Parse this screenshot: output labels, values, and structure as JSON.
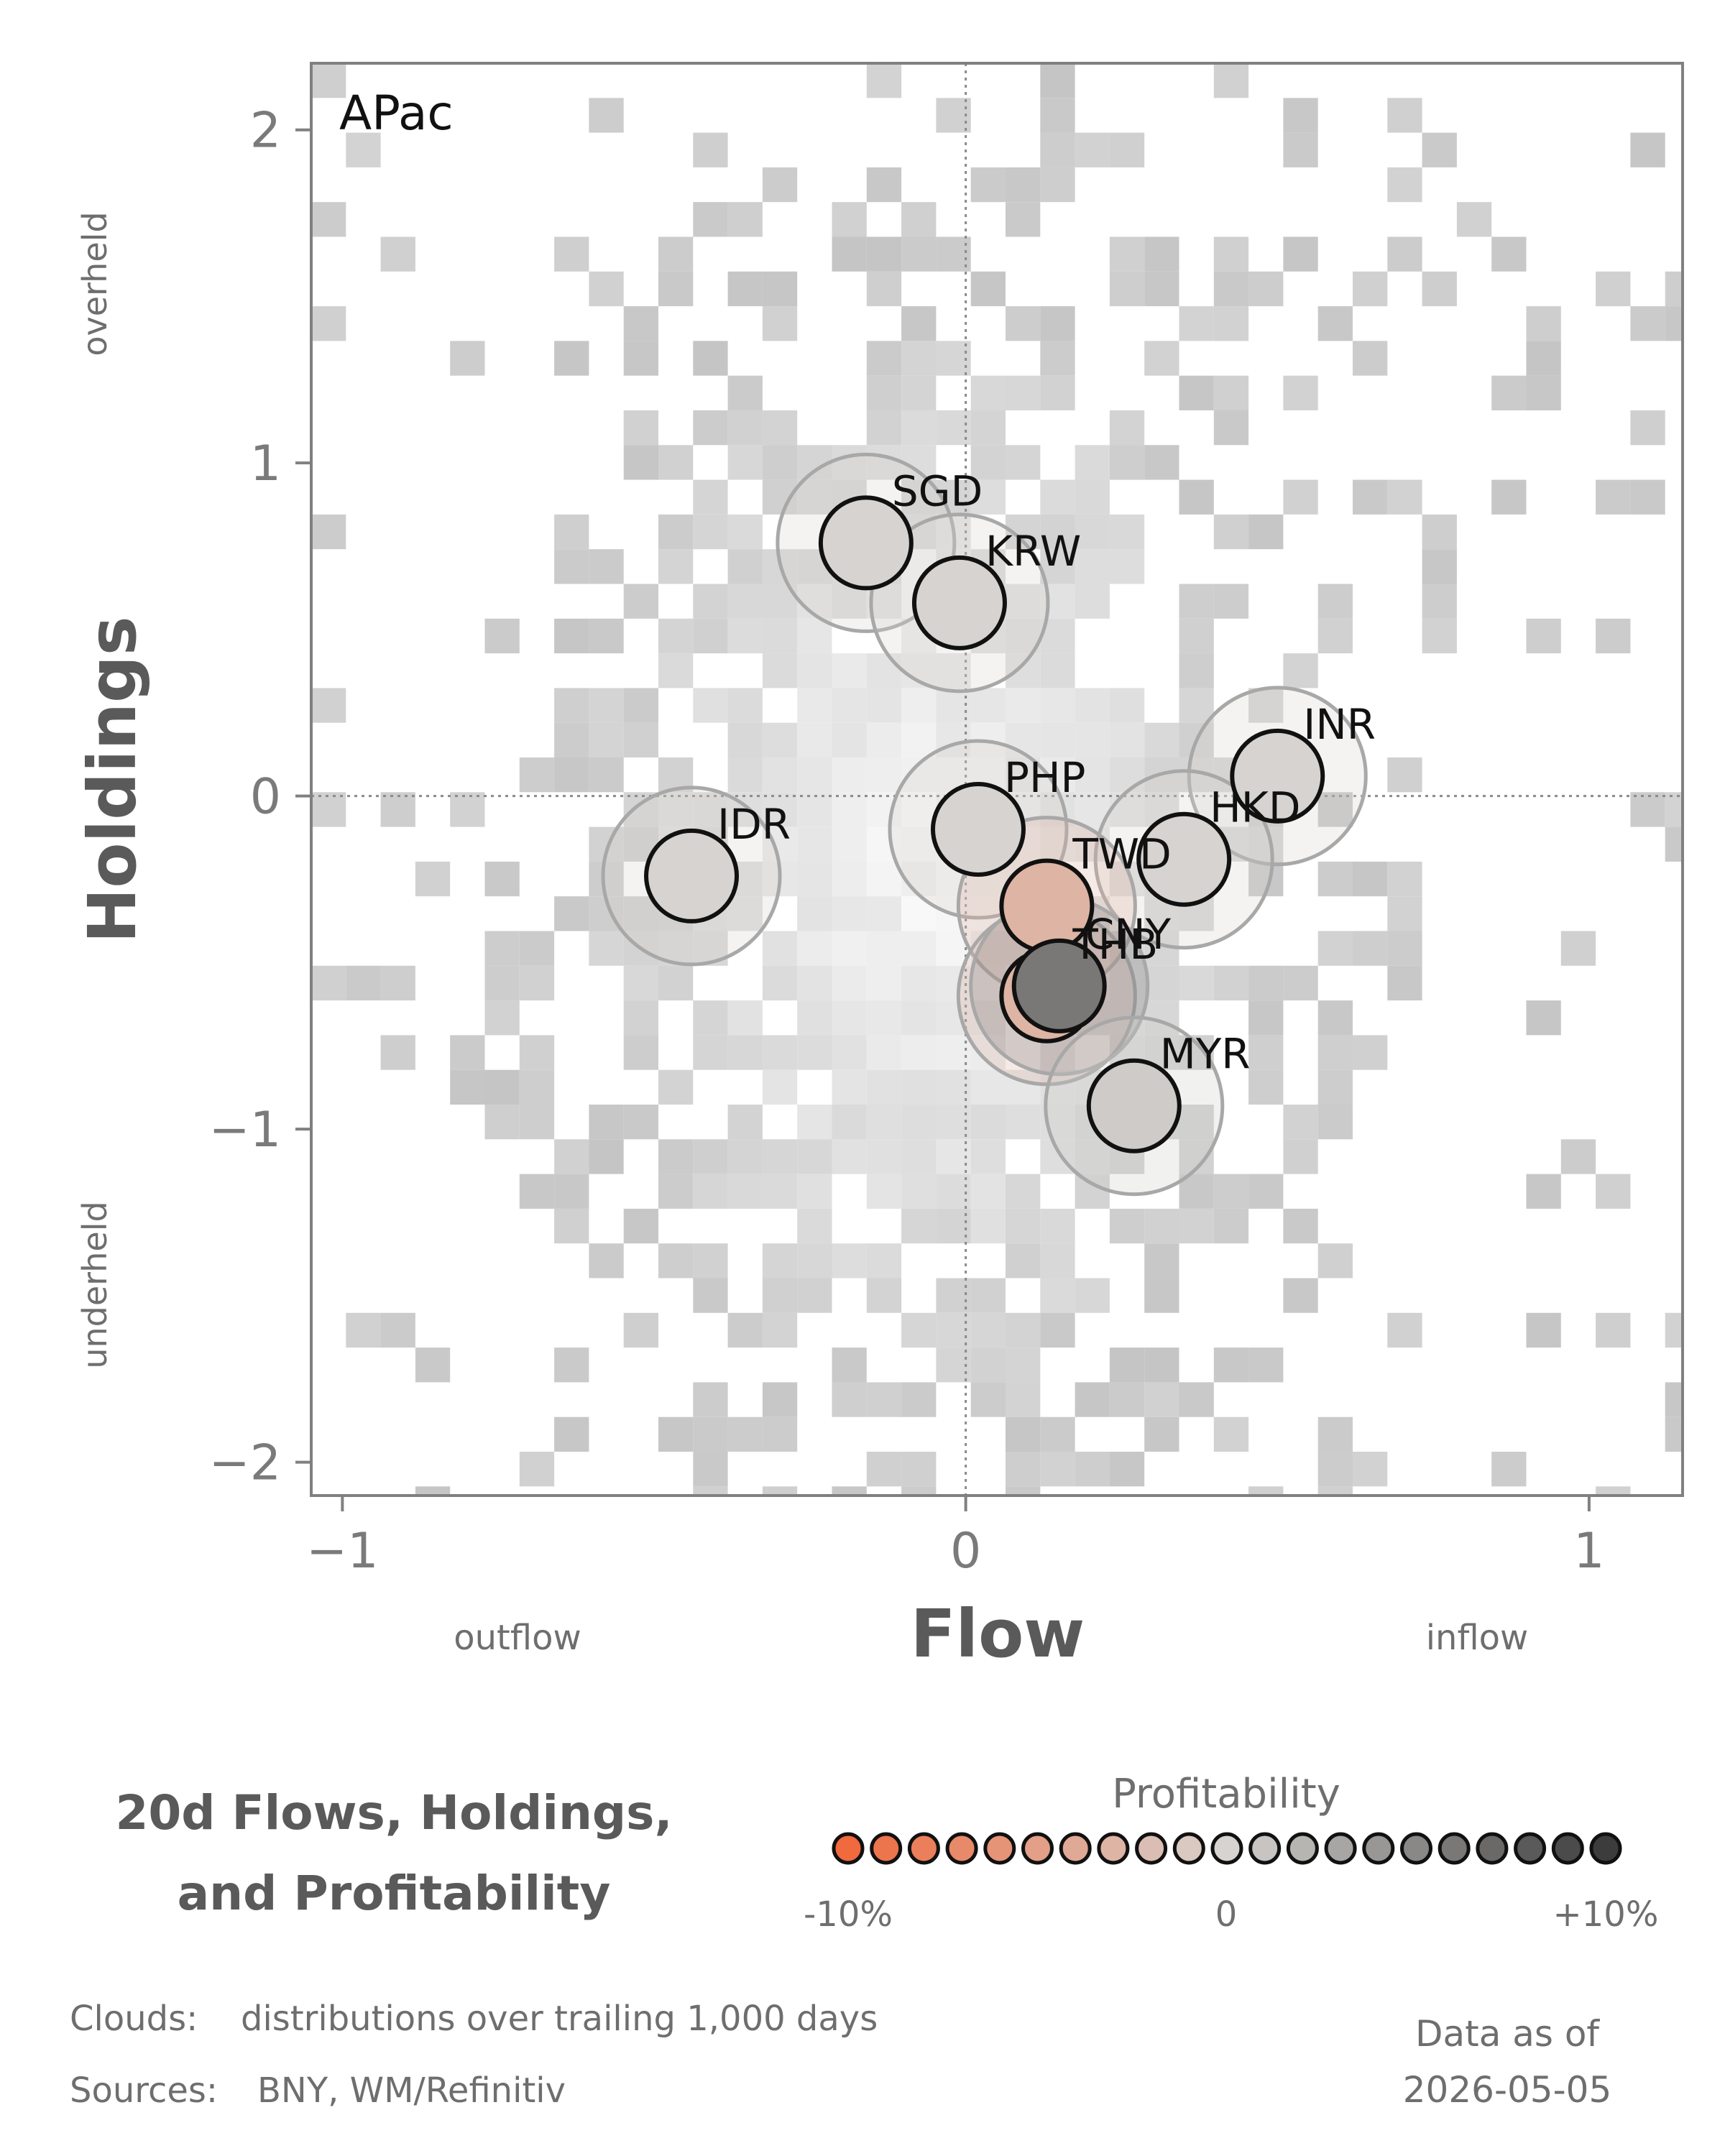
{
  "chart_data": {
    "type": "scatter",
    "panel_label": "APac",
    "xlabel": "Flow",
    "ylabel": "Holdings",
    "xlim": [
      -1.05,
      1.15
    ],
    "ylim": [
      -2.1,
      2.2
    ],
    "x_ticks": [
      {
        "v": -1,
        "label": "−1"
      },
      {
        "v": 0,
        "label": "0"
      },
      {
        "v": 1,
        "label": "1"
      }
    ],
    "y_ticks": [
      {
        "v": 2,
        "label": "2"
      },
      {
        "v": 1,
        "label": "1"
      },
      {
        "v": 0,
        "label": "0"
      },
      {
        "v": -1,
        "label": "−1"
      },
      {
        "v": -2,
        "label": "−2"
      }
    ],
    "x_annotations": {
      "left": "outflow",
      "right": "inflow"
    },
    "y_annotations": {
      "top": "overheld",
      "bottom": "underheld"
    },
    "reference_lines": {
      "x": 0,
      "y": 0,
      "style": "dotted"
    },
    "background": "heatmap cloud: distributions over trailing 1,000 days",
    "points": [
      {
        "label": "SGD",
        "x": -0.16,
        "y": 0.76,
        "profitability": 0.0
      },
      {
        "label": "KRW",
        "x": -0.01,
        "y": 0.58,
        "profitability": 0.0
      },
      {
        "label": "INR",
        "x": 0.5,
        "y": 0.06,
        "profitability": 0.0
      },
      {
        "label": "PHP",
        "x": 0.02,
        "y": -0.1,
        "profitability": 0.0
      },
      {
        "label": "IDR",
        "x": -0.44,
        "y": -0.24,
        "profitability": 0.0
      },
      {
        "label": "HKD",
        "x": 0.35,
        "y": -0.19,
        "profitability": 0.0
      },
      {
        "label": "TWD",
        "x": 0.13,
        "y": -0.33,
        "profitability": -3.0
      },
      {
        "label": "THB",
        "x": 0.13,
        "y": -0.6,
        "profitability": -3.0
      },
      {
        "label": "CNY",
        "x": 0.15,
        "y": -0.57,
        "profitability": 6.0
      },
      {
        "label": "MYR",
        "x": 0.27,
        "y": -0.93,
        "profitability": 0.5
      }
    ],
    "colorbar": {
      "title": "Profitability",
      "min_label": "-10%",
      "mid_label": "0",
      "max_label": "+10%",
      "min": -10,
      "max": 10,
      "steps": 21,
      "low_color": "#f06a3e",
      "mid_color": "#d6d3d0",
      "high_color": "#3c3c3c"
    }
  },
  "legend_title": [
    "20d Flows, Holdings,",
    "and Profitability"
  ],
  "footnotes": {
    "clouds_label": "Clouds:",
    "clouds_text": "distributions over trailing 1,000 days",
    "sources_label": "Sources:",
    "sources_text": "BNY, WM/Refinitiv"
  },
  "data_as_of": {
    "label": "Data as of",
    "date": "2026-05-05"
  },
  "colors": {
    "axis": "#808080",
    "text": "#5a5a5a",
    "ring": "#a8a8a8"
  }
}
